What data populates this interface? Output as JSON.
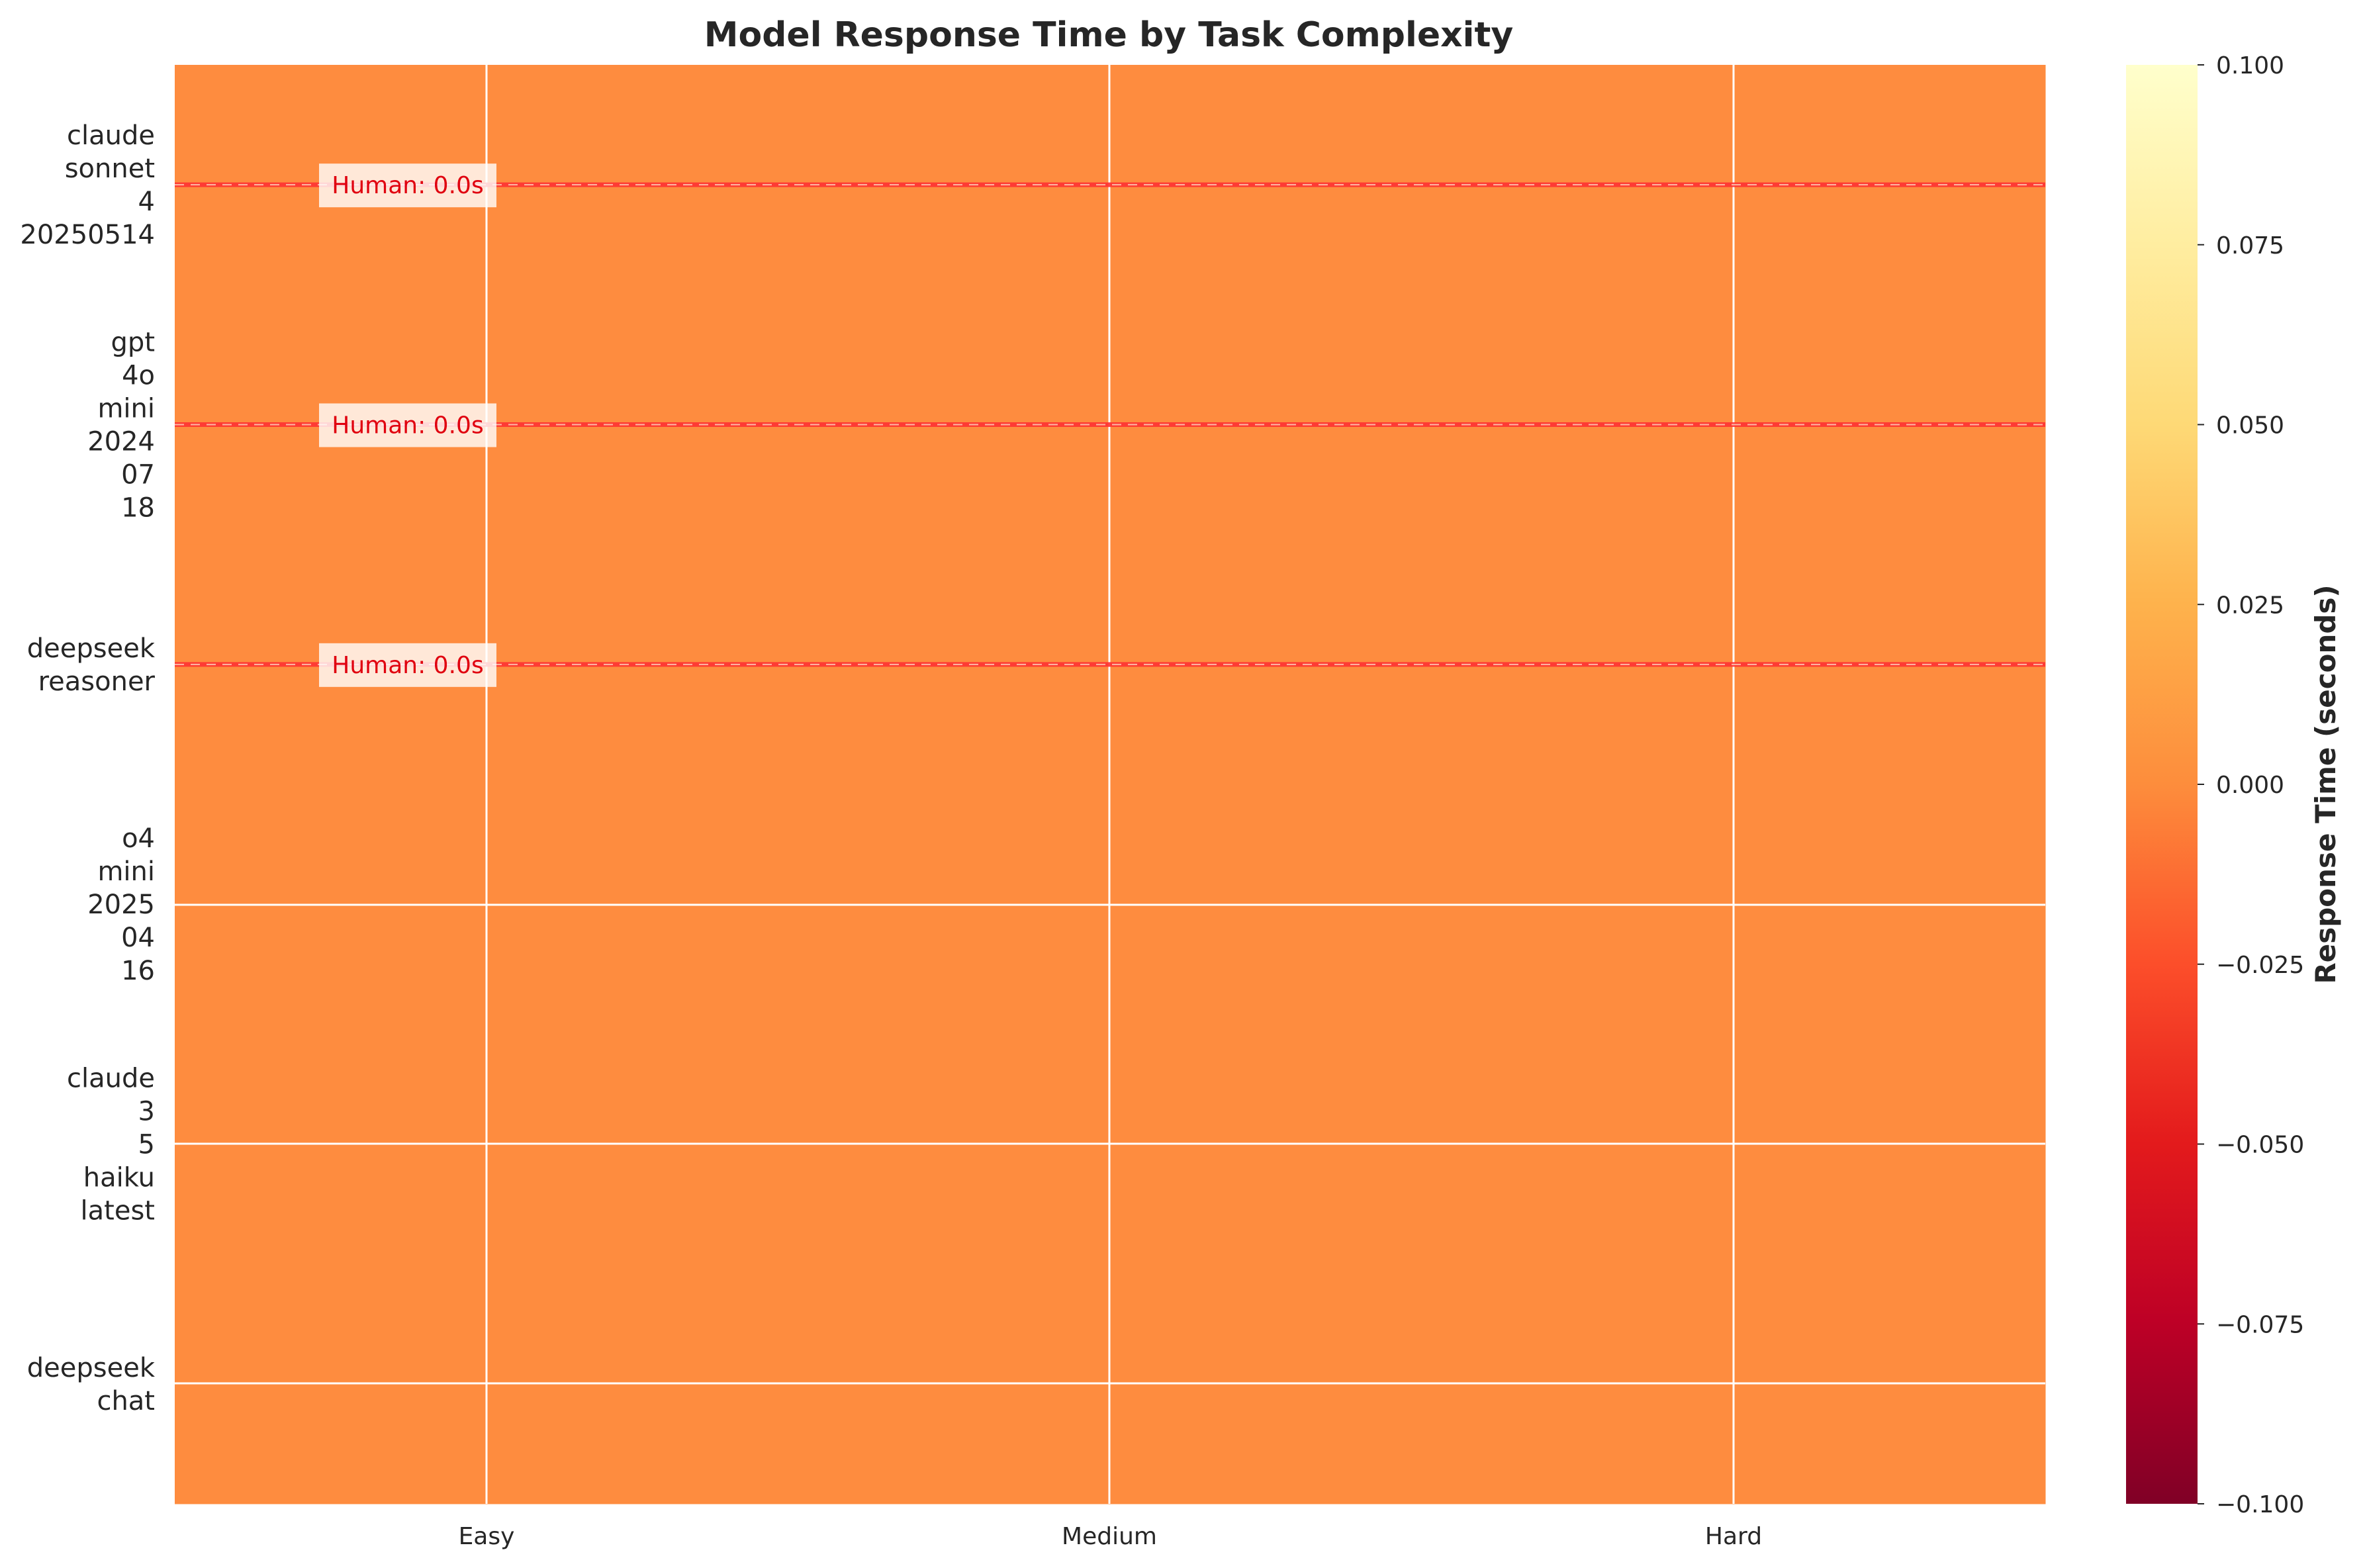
{
  "chart_data": {
    "type": "heatmap",
    "title": "Model Response Time by Task Complexity",
    "x_categories": [
      "Easy",
      "Medium",
      "Hard"
    ],
    "y_categories": [
      [
        "claude",
        "sonnet",
        "4",
        "20250514"
      ],
      [
        "gpt",
        "4o",
        "mini",
        "2024",
        "07",
        "18"
      ],
      [
        "deepseek",
        "reasoner"
      ],
      [
        "o4",
        "mini",
        "2025",
        "04",
        "16"
      ],
      [
        "claude",
        "3",
        "5",
        "haiku",
        "latest"
      ],
      [
        "deepseek",
        "chat"
      ]
    ],
    "values": [
      [
        0,
        0,
        0
      ],
      [
        0,
        0,
        0
      ],
      [
        0,
        0,
        0
      ],
      [
        0,
        0,
        0
      ],
      [
        0,
        0,
        0
      ],
      [
        0,
        0,
        0
      ]
    ],
    "cell_color": "#fe8c3f",
    "colorbar": {
      "label": "Response Time (seconds)",
      "range": [
        -0.1,
        0.1
      ],
      "ticks": [
        "0.100",
        "0.075",
        "0.050",
        "0.025",
        "0.000",
        "−0.025",
        "−0.050",
        "−0.075",
        "−0.100"
      ],
      "colormap": "YlOrRd_r",
      "stops": [
        "#800026",
        "#bd0026",
        "#e31a1c",
        "#fc4e2a",
        "#fd8d3c",
        "#feb24c",
        "#fed976",
        "#ffeda0",
        "#ffffcc"
      ]
    },
    "reference_lines": [
      {
        "row": 0,
        "label": "Human: 0.0s",
        "color": "#ff3333"
      },
      {
        "row": 1,
        "label": "Human: 0.0s",
        "color": "#ff3333"
      },
      {
        "row": 2,
        "label": "Human: 0.0s",
        "color": "#ff3333"
      }
    ],
    "grid": true
  }
}
